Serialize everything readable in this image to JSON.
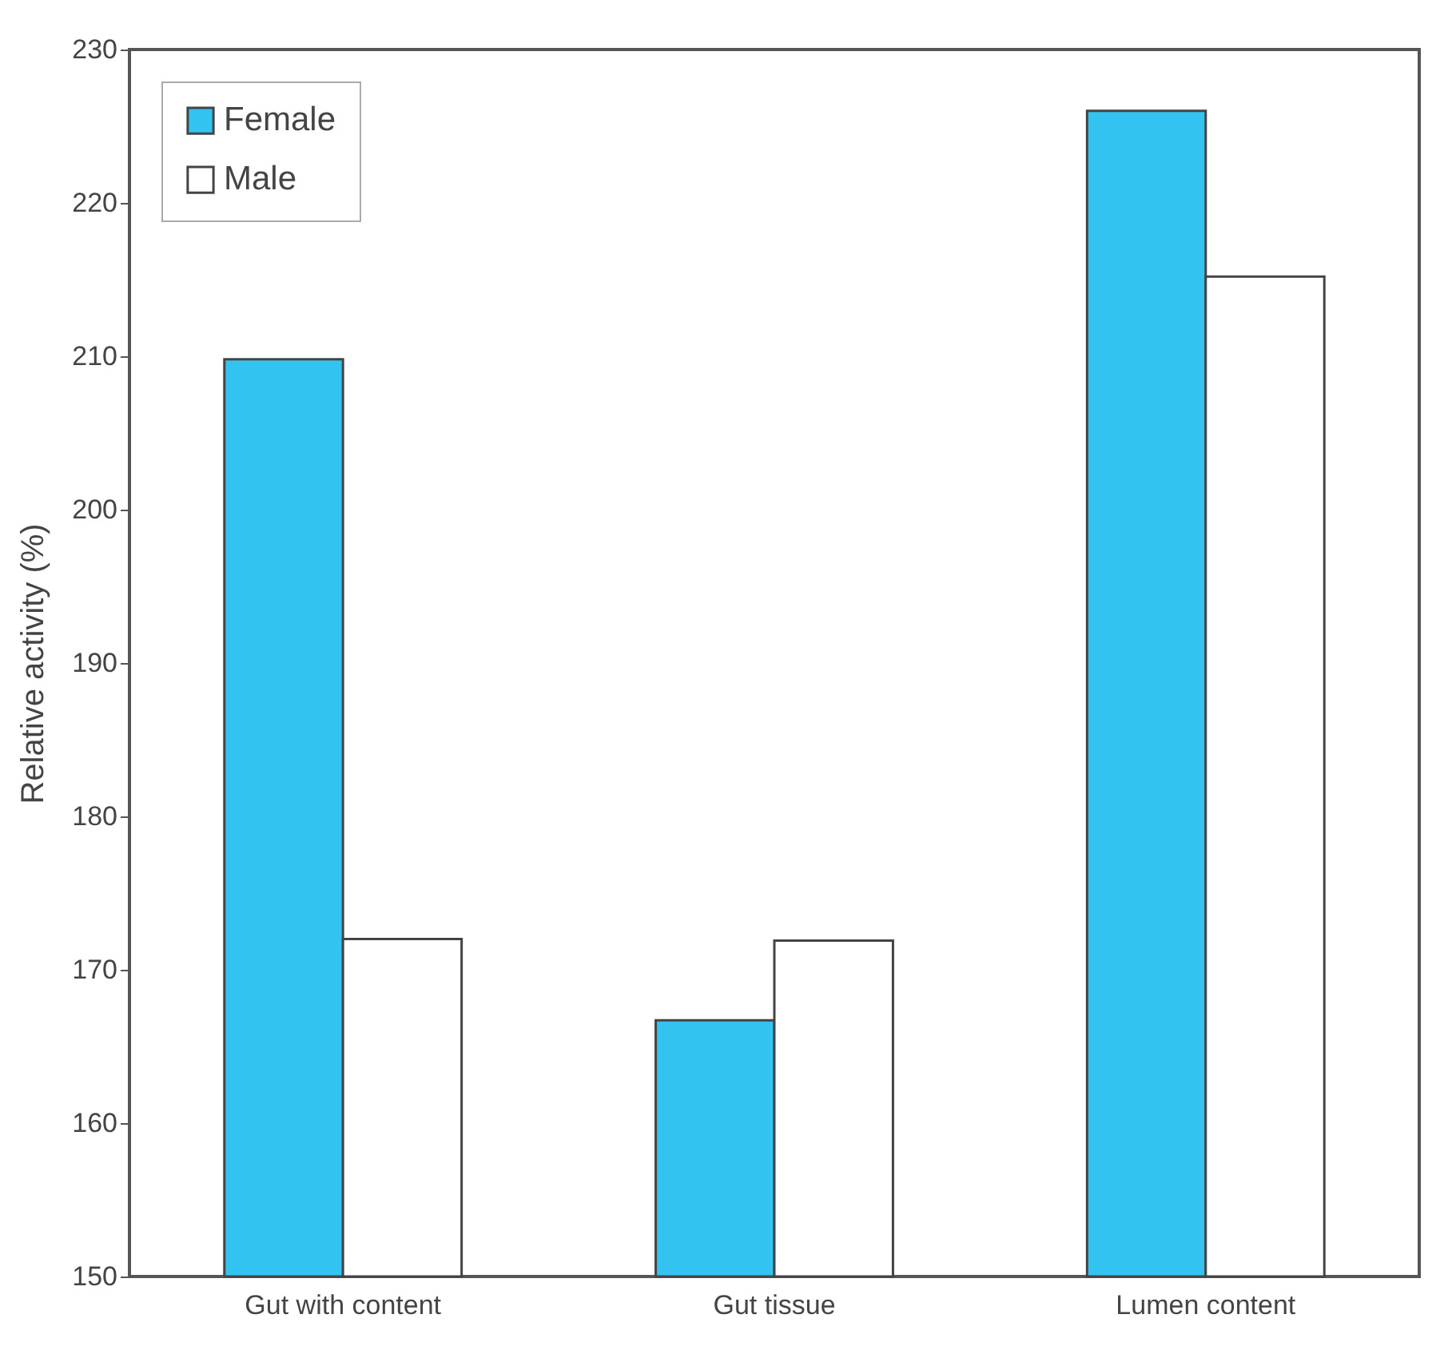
{
  "chart_data": {
    "type": "bar",
    "ylabel": "Relative activity (%)",
    "categories": [
      "Gut with content",
      "Gut tissue",
      "Lumen content"
    ],
    "series": [
      {
        "name": "Female",
        "color": "#33c3f0",
        "values": [
          209.8,
          166.7,
          226.0
        ]
      },
      {
        "name": "Male",
        "color": "#ffffff",
        "values": [
          172.0,
          171.9,
          215.2
        ]
      }
    ],
    "ylim": [
      150,
      230
    ],
    "yticks": [
      150,
      160,
      170,
      180,
      190,
      200,
      210,
      220,
      230
    ],
    "grid": false,
    "legend": "top left"
  }
}
